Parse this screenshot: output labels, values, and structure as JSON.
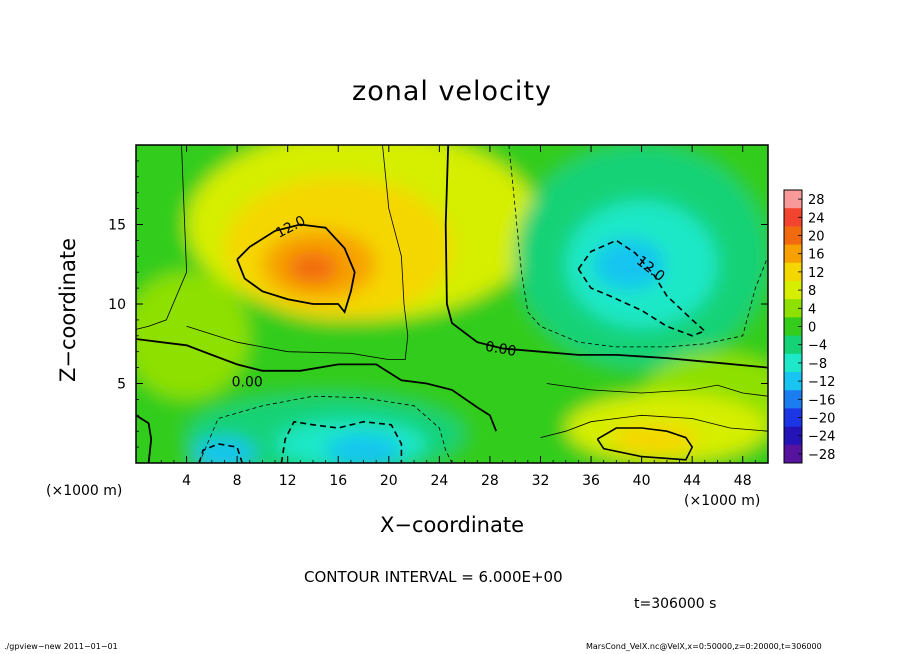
{
  "chart_data": {
    "type": "heatmap",
    "title": "zonal velocity",
    "xlabel": "X−coordinate",
    "ylabel": "Z−coordinate",
    "x_unit": "(×1000 m)",
    "y_unit": "(×1000 m)",
    "xlim": [
      0,
      50
    ],
    "ylim": [
      0,
      20
    ],
    "x_ticks": [
      4,
      8,
      12,
      16,
      20,
      24,
      28,
      32,
      36,
      40,
      44,
      48
    ],
    "y_ticks": [
      5,
      10,
      15
    ],
    "colorbar": {
      "levels": [
        28,
        24,
        20,
        16,
        12,
        8,
        4,
        0,
        -4,
        -8,
        -12,
        -16,
        -20,
        -24,
        -28
      ],
      "level_labels": [
        "28",
        "24",
        "20",
        "16",
        "12",
        "8",
        "4",
        "0",
        "−4",
        "−8",
        "−12",
        "−16",
        "−20",
        "−24",
        "−28"
      ],
      "colors": [
        "#f99a9a",
        "#f2442e",
        "#f26a10",
        "#f7a100",
        "#f5d700",
        "#d6ee00",
        "#8ee000",
        "#33cc1a",
        "#16d277",
        "#1ee8c7",
        "#19c5f0",
        "#1c7df0",
        "#1c36e6",
        "#2414b8",
        "#56149e"
      ]
    },
    "features": [
      {
        "name": "positive max",
        "x": 14,
        "z": 12.3,
        "value": 19
      },
      {
        "name": "negative min",
        "x": 39,
        "z": 12.5,
        "value": -14
      },
      {
        "name": "negative lower-left",
        "x": 17,
        "z": 1.0,
        "value": -16
      },
      {
        "name": "positive lower-right",
        "x": 41,
        "z": 1.5,
        "value": 13
      }
    ],
    "contour_labels": [
      "12.0",
      "12.0",
      "0.00",
      "0.00"
    ],
    "contour_interval": "6.000E+00"
  },
  "header": {
    "title": "zonal velocity"
  },
  "axes": {
    "x_label": "X−coordinate",
    "y_label": "Z−coordinate",
    "x_unit": "(×1000 m)"
  },
  "notes": {
    "contour_interval": "CONTOUR INTERVAL = 6.000E+00",
    "time": "t=306000 s"
  },
  "footer": {
    "left": "./gpview−new   2011−01−01",
    "right": "MarsCond_VelX.nc@VelX,x=0:50000,z=0:20000,t=306000"
  }
}
